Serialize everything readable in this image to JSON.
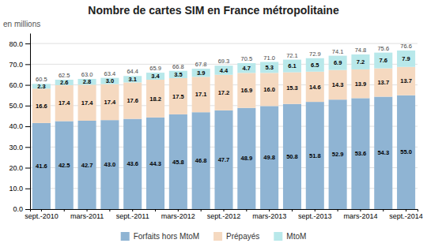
{
  "chart_data": {
    "type": "bar",
    "title": "Nombre de cartes SIM en France métropolitaine",
    "ylabel": "en millions",
    "categories": [
      "sept.-2010",
      null,
      "mars-2011",
      null,
      "sept.-2011",
      null,
      "mars-2012",
      null,
      "sept.-2012",
      null,
      "mars-2013",
      null,
      "sept.-2013",
      null,
      "mars-2014",
      null,
      "sept.-2014"
    ],
    "series": [
      {
        "name": "Forfaits hors MtoM",
        "color": "#8fb4d3",
        "values": [
          41.6,
          42.5,
          42.7,
          43.0,
          43.6,
          44.3,
          45.8,
          46.8,
          47.7,
          48.9,
          49.8,
          50.8,
          51.8,
          52.9,
          53.6,
          54.3,
          55.0
        ],
        "value_labels": [
          "41.6",
          "42.5",
          "42.7",
          "43.0",
          "43.6",
          "44.3",
          "45.8",
          "46.8",
          "47.7",
          "48.9",
          "49.8",
          "50.8",
          "51.8",
          "52.9",
          "53.6",
          "54.3",
          "55.0"
        ]
      },
      {
        "name": "Prépayés",
        "color": "#f5d9c0",
        "values": [
          16.6,
          17.4,
          17.4,
          17.4,
          17.6,
          18.2,
          17.5,
          17.1,
          17.2,
          16.9,
          16.0,
          15.3,
          14.6,
          14.3,
          13.9,
          13.7,
          13.7
        ],
        "value_labels": [
          "16.6",
          "17.4",
          "17.4",
          "17.4",
          "17.6",
          "18.2",
          "17.5",
          "17.1",
          "17.2",
          "16.9",
          "16.0",
          "15.3",
          "14.6",
          "14.3",
          "13.9",
          "13.7",
          "13.7"
        ]
      },
      {
        "name": "MtoM",
        "color": "#b8e8ea",
        "values": [
          2.3,
          2.6,
          2.8,
          3.0,
          3.1,
          3.4,
          3.5,
          3.9,
          4.4,
          4.7,
          5.3,
          6.1,
          6.5,
          6.9,
          7.2,
          7.6,
          7.9
        ],
        "value_labels": [
          "2.3",
          "2.6",
          "2.8",
          "3.0",
          "3.1",
          "3.4",
          "3.5",
          "3.9",
          "4.4",
          "4.7",
          "5.3",
          "6.1",
          "6.5",
          "6.9",
          "7.2",
          "7.6",
          "7.9"
        ]
      }
    ],
    "totals": {
      "values": [
        60.5,
        62.5,
        63.0,
        63.4,
        64.4,
        65.9,
        66.8,
        67.8,
        69.3,
        70.5,
        71.0,
        72.1,
        72.9,
        74.1,
        74.8,
        75.6,
        76.6
      ],
      "value_labels": [
        "60.5",
        "62.5",
        "63.0",
        "63.4",
        "64.4",
        "65.9",
        "66.8",
        "67.8",
        "69.3",
        "70.5",
        "71.0",
        "72.1",
        "72.9",
        "74.1",
        "74.8",
        "75.6",
        "76.6"
      ]
    },
    "stacked": true,
    "data_labels": true,
    "ylim": [
      0,
      85
    ],
    "yticks": [
      {
        "value": 0.0,
        "label": "0.0"
      },
      {
        "value": 10.0,
        "label": "10.0"
      },
      {
        "value": 20.0,
        "label": "20.0"
      },
      {
        "value": 30.0,
        "label": "30.0"
      },
      {
        "value": 40.0,
        "label": "40.0"
      },
      {
        "value": 50.0,
        "label": "50.0"
      },
      {
        "value": 60.0,
        "label": "60.0"
      },
      {
        "value": 70.0,
        "label": "70.0"
      },
      {
        "value": 80.0,
        "label": "80.0"
      }
    ],
    "grid": true,
    "legend": "bottom"
  }
}
